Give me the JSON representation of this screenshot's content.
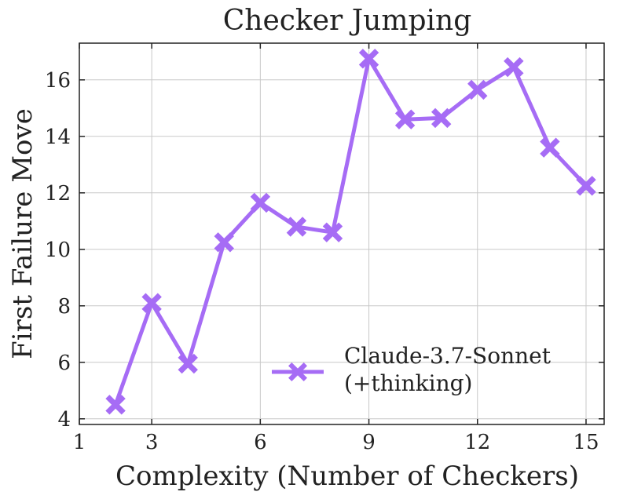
{
  "chart_data": {
    "type": "line",
    "title": "Checker Jumping",
    "xlabel": "Complexity (Number of Checkers)",
    "ylabel": "First Failure Move",
    "xlim": [
      1,
      15.5
    ],
    "ylim": [
      3.8,
      17.3
    ],
    "xticks": [
      1,
      3,
      6,
      9,
      12,
      15
    ],
    "yticks": [
      4,
      6,
      8,
      10,
      12,
      14,
      16
    ],
    "grid": true,
    "legend_position": "lower-right",
    "series": [
      {
        "name": "Claude-3.7-Sonnet\n(+thinking)",
        "color": "#a66cf5",
        "marker": "x",
        "x": [
          2,
          3,
          4,
          5,
          6,
          7,
          8,
          9,
          10,
          11,
          12,
          13,
          14,
          15
        ],
        "y": [
          4.5,
          8.1,
          5.95,
          10.25,
          11.65,
          10.8,
          10.6,
          16.75,
          14.6,
          14.65,
          15.65,
          16.45,
          13.6,
          12.25
        ]
      }
    ]
  }
}
